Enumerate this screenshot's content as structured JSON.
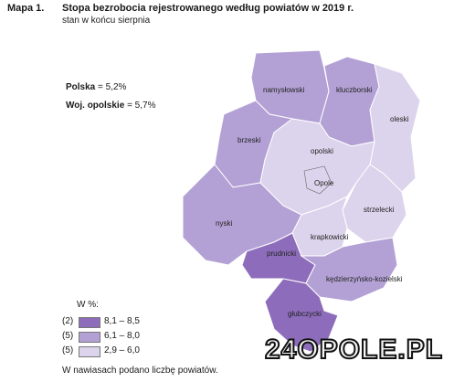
{
  "header": {
    "label": "Mapa 1.",
    "title": "Stopa bezrobocia rejestrowanego według powiatów w 2019 r.",
    "subtitle": "stan w końcu sierpnia"
  },
  "stats": [
    {
      "label": "Polska",
      "value": "= 5,2%"
    },
    {
      "label": "Woj. opolskie",
      "value": "= 5,7%"
    }
  ],
  "districts": [
    {
      "name": "namysłowski",
      "class": 1
    },
    {
      "name": "kluczborski",
      "class": 1
    },
    {
      "name": "oleski",
      "class": 2
    },
    {
      "name": "brzeski",
      "class": 1
    },
    {
      "name": "opolski",
      "class": 2
    },
    {
      "name": "Opole",
      "class": 2
    },
    {
      "name": "strzelecki",
      "class": 2
    },
    {
      "name": "krapkowicki",
      "class": 2
    },
    {
      "name": "nyski",
      "class": 1
    },
    {
      "name": "prudnicki",
      "class": 0
    },
    {
      "name": "kędzierzyńsko-kozielski",
      "class": 1
    },
    {
      "name": "głubczycki",
      "class": 0
    }
  ],
  "legend": {
    "title": "W %:",
    "items": [
      {
        "count": "(2)",
        "range": "8,1 –  8,5",
        "color": "#8d6dbb"
      },
      {
        "count": "(5)",
        "range": "6,1 –  8,0",
        "color": "#b3a1d5"
      },
      {
        "count": "(5)",
        "range": "2,9 –  6,0",
        "color": "#dcd4ec"
      }
    ]
  },
  "footnote": "W nawiasach podano liczbę powiatów.",
  "watermark": "24OPOLE.PL"
}
